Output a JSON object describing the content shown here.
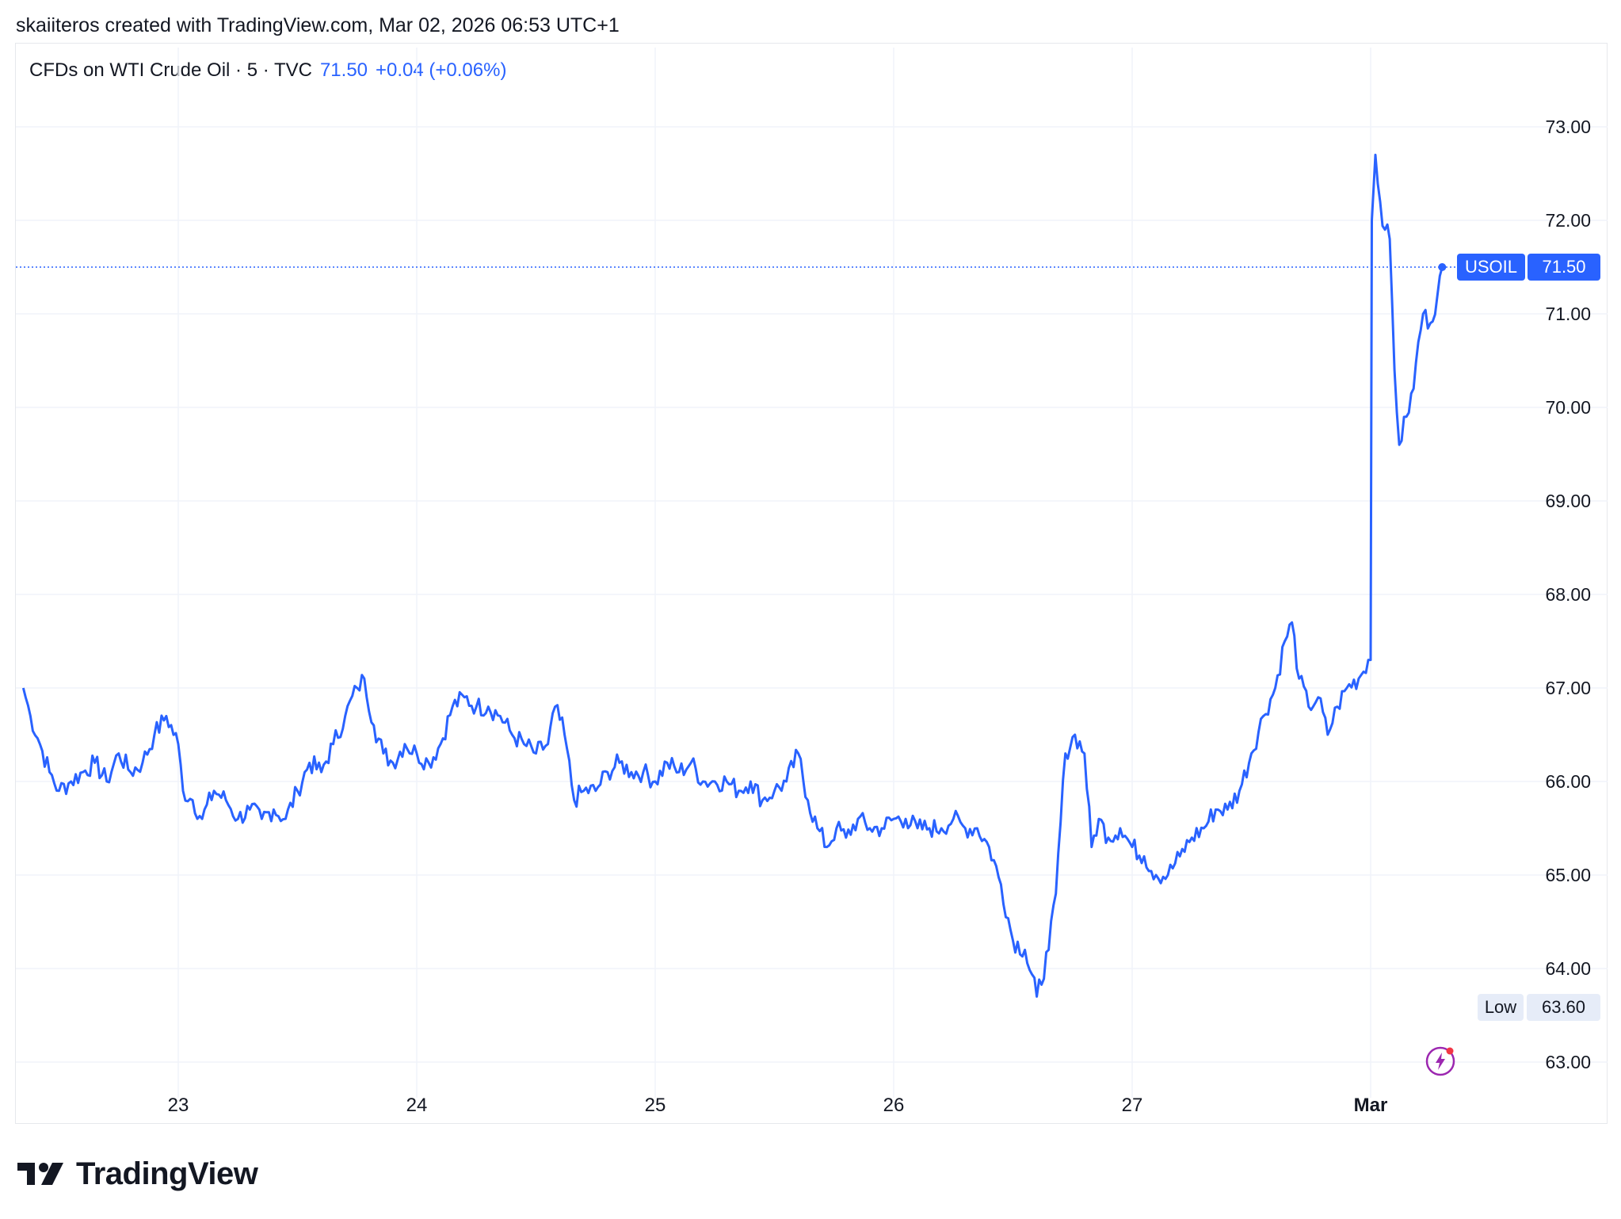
{
  "header": {
    "credit": "skaiiteros created with TradingView.com, Mar 02, 2026 06:53 UTC+1"
  },
  "legend": {
    "symbol_desc": "CFDs on WTI Crude Oil · 5 · TVC",
    "last_price": "71.50",
    "change": "+0.04 (+0.06%)"
  },
  "tags": {
    "symbol": "USOIL",
    "last_price": "71.50",
    "low_label": "Low",
    "low_value": "63.60"
  },
  "brand": {
    "name": "TradingView"
  },
  "colors": {
    "line": "#2962ff",
    "grid": "#f0f3fa",
    "text": "#131722",
    "low_bg": "#e6ecf8"
  },
  "icons": {
    "alert": "lightning-bolt-icon",
    "logo": "tradingview-logo-icon"
  },
  "chart_data": {
    "type": "line",
    "title": "CFDs on WTI Crude Oil · 5 · TVC",
    "xlabel": "",
    "ylabel": "",
    "ylim": [
      62.6,
      73.9
    ],
    "xlim": [
      22.35,
      29.6
    ],
    "y_ticks": [
      "63.00",
      "64.00",
      "65.00",
      "66.00",
      "67.00",
      "68.00",
      "69.00",
      "70.00",
      "71.00",
      "72.00",
      "73.00"
    ],
    "x_ticks": [
      {
        "x": 23,
        "label": "23"
      },
      {
        "x": 24,
        "label": "24"
      },
      {
        "x": 25,
        "label": "25"
      },
      {
        "x": 26,
        "label": "26"
      },
      {
        "x": 27,
        "label": "27"
      },
      {
        "x": 28,
        "label": "Mar"
      }
    ],
    "grid": true,
    "last_price_line": 71.5,
    "low": 63.6,
    "series": [
      {
        "points": [
          [
            22.35,
            67.0
          ],
          [
            22.38,
            66.7
          ],
          [
            22.42,
            66.4
          ],
          [
            22.46,
            66.1
          ],
          [
            22.5,
            65.9
          ],
          [
            22.55,
            66.0
          ],
          [
            22.6,
            66.1
          ],
          [
            22.65,
            66.2
          ],
          [
            22.7,
            66.0
          ],
          [
            22.75,
            66.3
          ],
          [
            22.8,
            66.1
          ],
          [
            22.85,
            66.2
          ],
          [
            22.9,
            66.5
          ],
          [
            22.95,
            66.7
          ],
          [
            23.0,
            66.4
          ],
          [
            23.02,
            65.9
          ],
          [
            23.06,
            65.8
          ],
          [
            23.1,
            65.6
          ],
          [
            23.15,
            65.9
          ],
          [
            23.2,
            65.8
          ],
          [
            23.25,
            65.6
          ],
          [
            23.3,
            65.7
          ],
          [
            23.35,
            65.6
          ],
          [
            23.4,
            65.7
          ],
          [
            23.45,
            65.6
          ],
          [
            23.5,
            65.9
          ],
          [
            23.55,
            66.2
          ],
          [
            23.6,
            66.1
          ],
          [
            23.65,
            66.4
          ],
          [
            23.7,
            66.7
          ],
          [
            23.75,
            67.0
          ],
          [
            23.78,
            67.1
          ],
          [
            23.82,
            66.6
          ],
          [
            23.86,
            66.3
          ],
          [
            23.9,
            66.2
          ],
          [
            23.95,
            66.4
          ],
          [
            24.0,
            66.3
          ],
          [
            24.05,
            66.2
          ],
          [
            24.1,
            66.4
          ],
          [
            24.15,
            66.8
          ],
          [
            24.2,
            66.9
          ],
          [
            24.25,
            66.8
          ],
          [
            24.3,
            66.8
          ],
          [
            24.35,
            66.7
          ],
          [
            24.4,
            66.5
          ],
          [
            24.45,
            66.4
          ],
          [
            24.5,
            66.3
          ],
          [
            24.55,
            66.4
          ],
          [
            24.58,
            66.8
          ],
          [
            24.62,
            66.5
          ],
          [
            24.66,
            65.8
          ],
          [
            24.7,
            65.9
          ],
          [
            24.75,
            65.9
          ],
          [
            24.8,
            66.1
          ],
          [
            24.85,
            66.2
          ],
          [
            24.9,
            66.1
          ],
          [
            24.95,
            66.1
          ],
          [
            25.0,
            66.0
          ],
          [
            25.05,
            66.2
          ],
          [
            25.1,
            66.1
          ],
          [
            25.15,
            66.2
          ],
          [
            25.2,
            66.0
          ],
          [
            25.25,
            66.0
          ],
          [
            25.3,
            66.0
          ],
          [
            25.35,
            65.9
          ],
          [
            25.4,
            66.0
          ],
          [
            25.45,
            65.8
          ],
          [
            25.5,
            65.9
          ],
          [
            25.55,
            66.0
          ],
          [
            25.6,
            66.3
          ],
          [
            25.64,
            65.8
          ],
          [
            25.68,
            65.5
          ],
          [
            25.72,
            65.3
          ],
          [
            25.76,
            65.5
          ],
          [
            25.8,
            65.4
          ],
          [
            25.85,
            65.6
          ],
          [
            25.9,
            65.5
          ],
          [
            25.95,
            65.5
          ],
          [
            26.0,
            65.6
          ],
          [
            26.05,
            65.6
          ],
          [
            26.1,
            65.5
          ],
          [
            26.15,
            65.5
          ],
          [
            26.2,
            65.5
          ],
          [
            26.25,
            65.6
          ],
          [
            26.3,
            65.5
          ],
          [
            26.35,
            65.5
          ],
          [
            26.4,
            65.3
          ],
          [
            26.45,
            64.9
          ],
          [
            26.5,
            64.3
          ],
          [
            26.55,
            64.2
          ],
          [
            26.6,
            63.7
          ],
          [
            26.65,
            64.2
          ],
          [
            26.68,
            64.8
          ],
          [
            26.72,
            66.3
          ],
          [
            26.76,
            66.5
          ],
          [
            26.8,
            66.3
          ],
          [
            26.83,
            65.3
          ],
          [
            26.86,
            65.6
          ],
          [
            26.9,
            65.4
          ],
          [
            26.95,
            65.5
          ],
          [
            27.0,
            65.3
          ],
          [
            27.05,
            65.2
          ],
          [
            27.1,
            65.0
          ],
          [
            27.15,
            65.0
          ],
          [
            27.2,
            65.2
          ],
          [
            27.25,
            65.4
          ],
          [
            27.3,
            65.5
          ],
          [
            27.35,
            65.7
          ],
          [
            27.4,
            65.7
          ],
          [
            27.45,
            65.9
          ],
          [
            27.5,
            66.3
          ],
          [
            27.55,
            66.7
          ],
          [
            27.6,
            67.0
          ],
          [
            27.64,
            67.5
          ],
          [
            27.67,
            67.7
          ],
          [
            27.7,
            67.1
          ],
          [
            27.74,
            66.8
          ],
          [
            27.78,
            66.9
          ],
          [
            27.82,
            66.5
          ],
          [
            27.86,
            66.8
          ],
          [
            27.9,
            67.0
          ],
          [
            27.95,
            67.1
          ],
          [
            27.99,
            67.3
          ],
          [
            28.0,
            67.3
          ],
          [
            28.005,
            72.0
          ],
          [
            28.02,
            72.7
          ],
          [
            28.04,
            72.2
          ],
          [
            28.06,
            71.9
          ],
          [
            28.08,
            71.8
          ],
          [
            28.1,
            70.4
          ],
          [
            28.12,
            69.6
          ],
          [
            28.15,
            69.9
          ],
          [
            28.18,
            70.2
          ],
          [
            28.2,
            70.7
          ],
          [
            28.22,
            71.0
          ],
          [
            28.25,
            70.9
          ],
          [
            28.28,
            71.2
          ],
          [
            28.3,
            71.5
          ]
        ]
      }
    ]
  }
}
